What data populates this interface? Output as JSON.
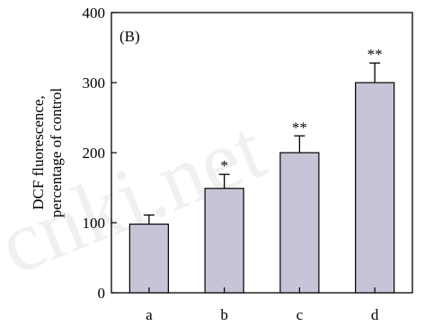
{
  "watermark": "cnki.net",
  "chart_data": {
    "type": "bar",
    "panel_label": "(B)",
    "ylabel_lines": [
      "DCF fluorescence,",
      "percentage of control"
    ],
    "categories": [
      "a",
      "b",
      "c",
      "d"
    ],
    "values": [
      98,
      149,
      200,
      300
    ],
    "errors": [
      13,
      20,
      24,
      28
    ],
    "significance": [
      "",
      "*",
      "**",
      "**"
    ],
    "ylim": [
      0,
      400
    ],
    "yticks": [
      0,
      100,
      200,
      300,
      400
    ],
    "bar_color": "#c6c4d6",
    "grid": false
  }
}
